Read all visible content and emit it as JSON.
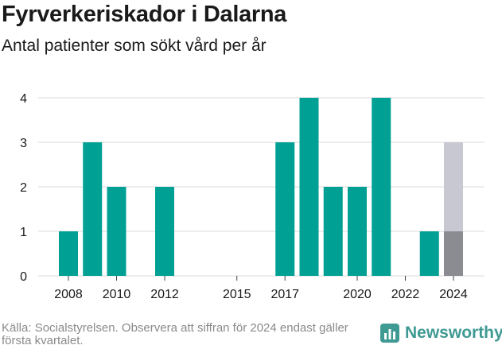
{
  "title": "Fyrverkeriskador i Dalarna",
  "subtitle": "Antal patienter som sökt vård per år",
  "footnote": "Källa: Socialstyrelsen. Observera att siffran för 2024 endast gäller första kvartalet.",
  "brand": "Newsworthy",
  "colors": {
    "main": "#00a194",
    "partial": "#8b8c91",
    "extrapolated": "#c8c8d2",
    "grid": "#d9d9d9",
    "brand": "#3f9a93"
  },
  "chart_data": {
    "type": "bar",
    "x": [
      2008,
      2009,
      2010,
      2011,
      2012,
      2013,
      2014,
      2015,
      2016,
      2017,
      2018,
      2019,
      2020,
      2021,
      2022,
      2023,
      2024
    ],
    "values": [
      1,
      3,
      2,
      0,
      2,
      0,
      0,
      0,
      0,
      3,
      4,
      2,
      2,
      4,
      0,
      1,
      1
    ],
    "overlay": {
      "x": 2024,
      "value": 3
    },
    "xticks": [
      "2008",
      "2010",
      "2012",
      "2015",
      "2017",
      "2020",
      "2022",
      "2024"
    ],
    "yticks": [
      "0",
      "1",
      "2",
      "3",
      "4"
    ],
    "ylim": [
      0,
      4
    ]
  }
}
